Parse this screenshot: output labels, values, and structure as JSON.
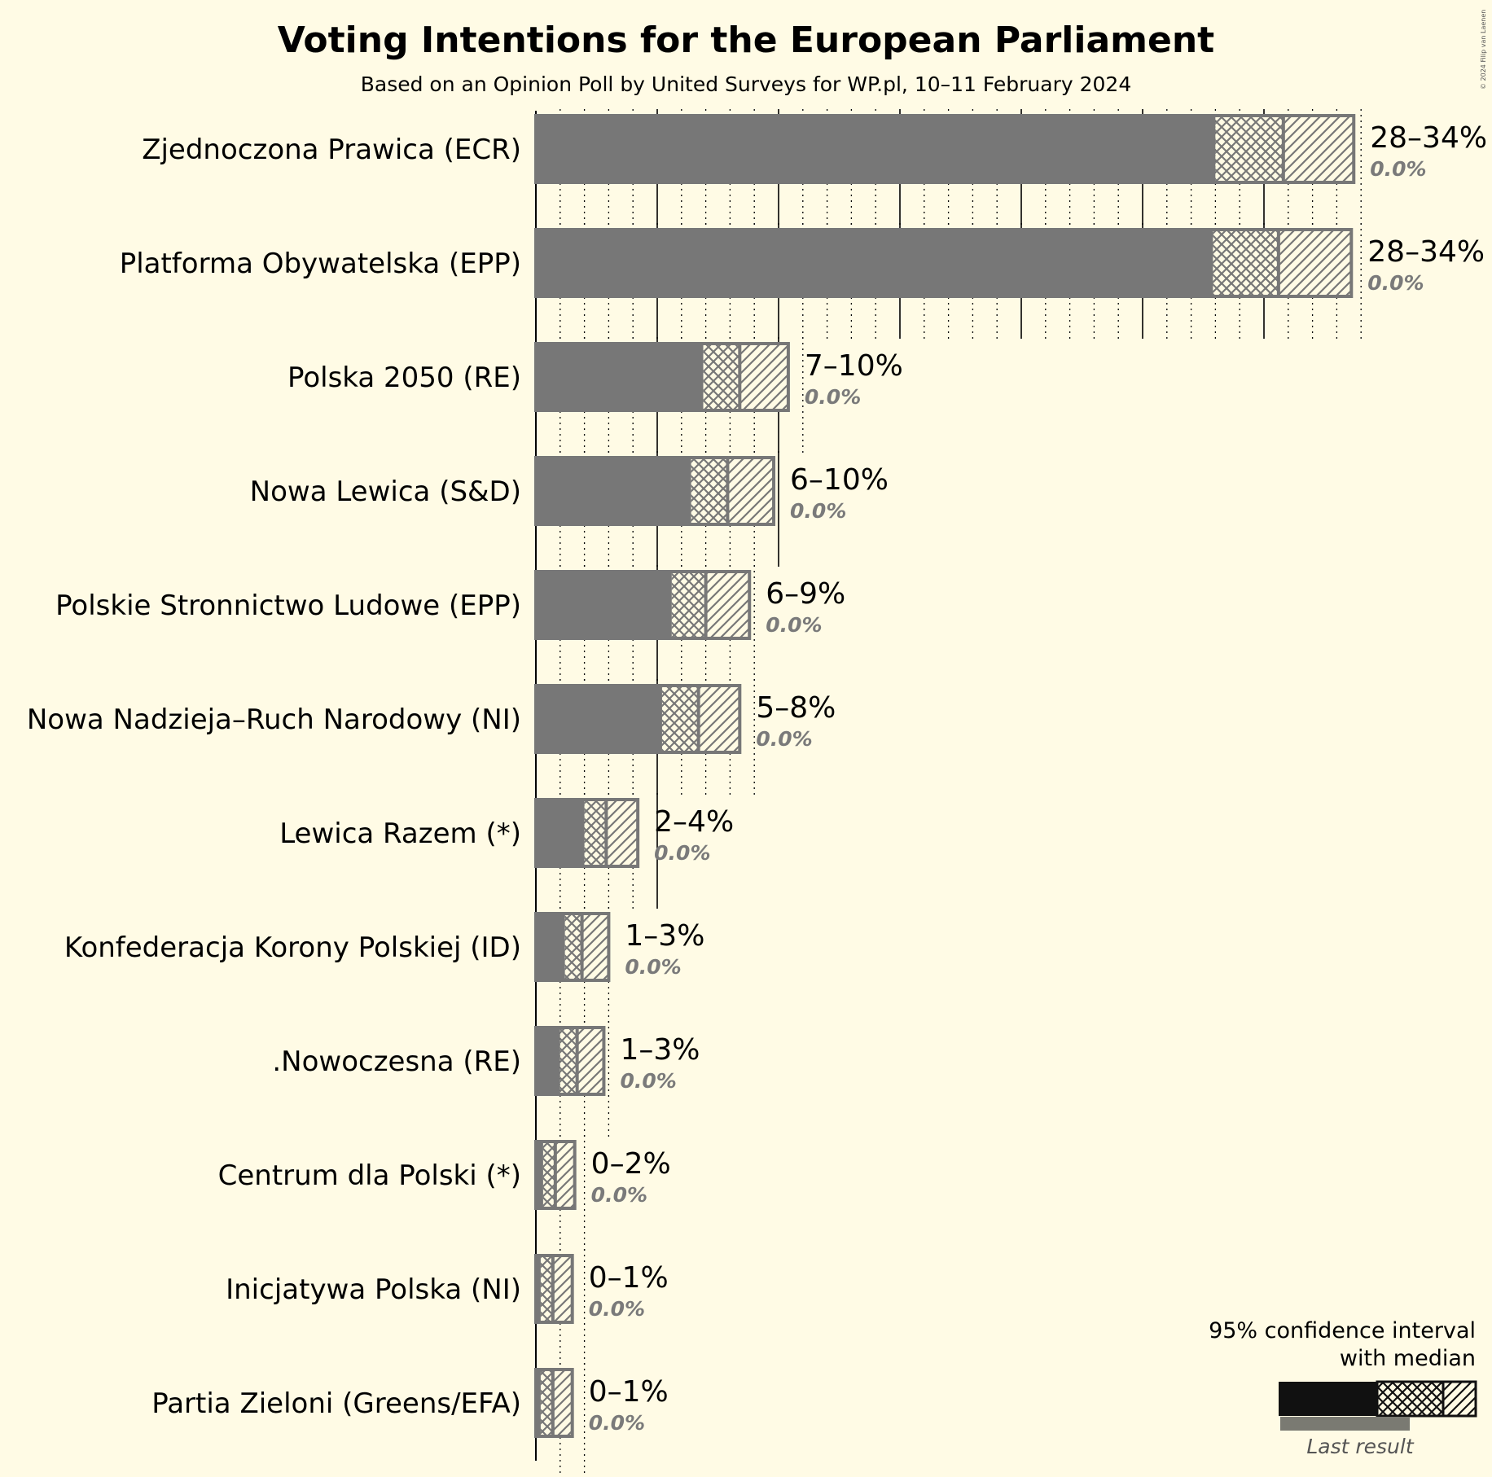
{
  "chart_data": {
    "type": "bar",
    "title": "Voting Intentions for the European Parliament",
    "subtitle": "Based on an Opinion Poll by United Surveys for WP.pl, 10–11 February 2024",
    "copyright": "© 2024 Filip van Laenen",
    "xlim": [
      0,
      35
    ],
    "series": [
      {
        "name": "Zjednoczona Prawica (ECR)",
        "low": 28.0,
        "median": 30.8,
        "high": 33.7,
        "range_label": "28–34%",
        "last_result": 0.0,
        "last_label": "0.0%"
      },
      {
        "name": "Platforma Obywatelska (EPP)",
        "low": 27.9,
        "median": 30.6,
        "high": 33.6,
        "range_label": "28–34%",
        "last_result": 0.0,
        "last_label": "0.0%"
      },
      {
        "name": "Polska 2050 (RE)",
        "low": 6.9,
        "median": 8.4,
        "high": 10.4,
        "range_label": "7–10%",
        "last_result": 0.0,
        "last_label": "0.0%"
      },
      {
        "name": "Nowa Lewica (S&D)",
        "low": 6.4,
        "median": 7.9,
        "high": 9.8,
        "range_label": "6–10%",
        "last_result": 0.0,
        "last_label": "0.0%"
      },
      {
        "name": "Polskie Stronnictwo Ludowe (EPP)",
        "low": 5.6,
        "median": 7.0,
        "high": 8.8,
        "range_label": "6–9%",
        "last_result": 0.0,
        "last_label": "0.0%"
      },
      {
        "name": "Nowa Nadzieja–Ruch Narodowy (NI)",
        "low": 5.2,
        "median": 6.7,
        "high": 8.4,
        "range_label": "5–8%",
        "last_result": 0.0,
        "last_label": "0.0%"
      },
      {
        "name": "Lewica Razem (*)",
        "low": 2.0,
        "median": 2.9,
        "high": 4.2,
        "range_label": "2–4%",
        "last_result": 0.0,
        "last_label": "0.0%"
      },
      {
        "name": "Konfederacja Korony Polskiej (ID)",
        "low": 1.2,
        "median": 1.9,
        "high": 3.0,
        "range_label": "1–3%",
        "last_result": 0.0,
        "last_label": "0.0%"
      },
      {
        "name": ".Nowoczesna (RE)",
        "low": 1.0,
        "median": 1.7,
        "high": 2.8,
        "range_label": "1–3%",
        "last_result": 0.0,
        "last_label": "0.0%"
      },
      {
        "name": "Centrum dla Polski (*)",
        "low": 0.3,
        "median": 0.8,
        "high": 1.6,
        "range_label": "0–2%",
        "last_result": 0.0,
        "last_label": "0.0%"
      },
      {
        "name": "Inicjatywa Polska (NI)",
        "low": 0.2,
        "median": 0.7,
        "high": 1.5,
        "range_label": "0–1%",
        "last_result": 0.0,
        "last_label": "0.0%"
      },
      {
        "name": "Partia Zieloni (Greens/EFA)",
        "low": 0.2,
        "median": 0.7,
        "high": 1.5,
        "range_label": "0–1%",
        "last_result": 0.0,
        "last_label": "0.0%"
      }
    ],
    "legend": {
      "line1": "95% confidence interval",
      "line2": "with median",
      "last_result": "Last result",
      "placement": "bottom-right"
    },
    "colors": {
      "background": "#fffbe5",
      "bar": "#777777",
      "hatch": "#777777",
      "legend_bar": "#111111",
      "last_result": "#7a7a72"
    }
  }
}
